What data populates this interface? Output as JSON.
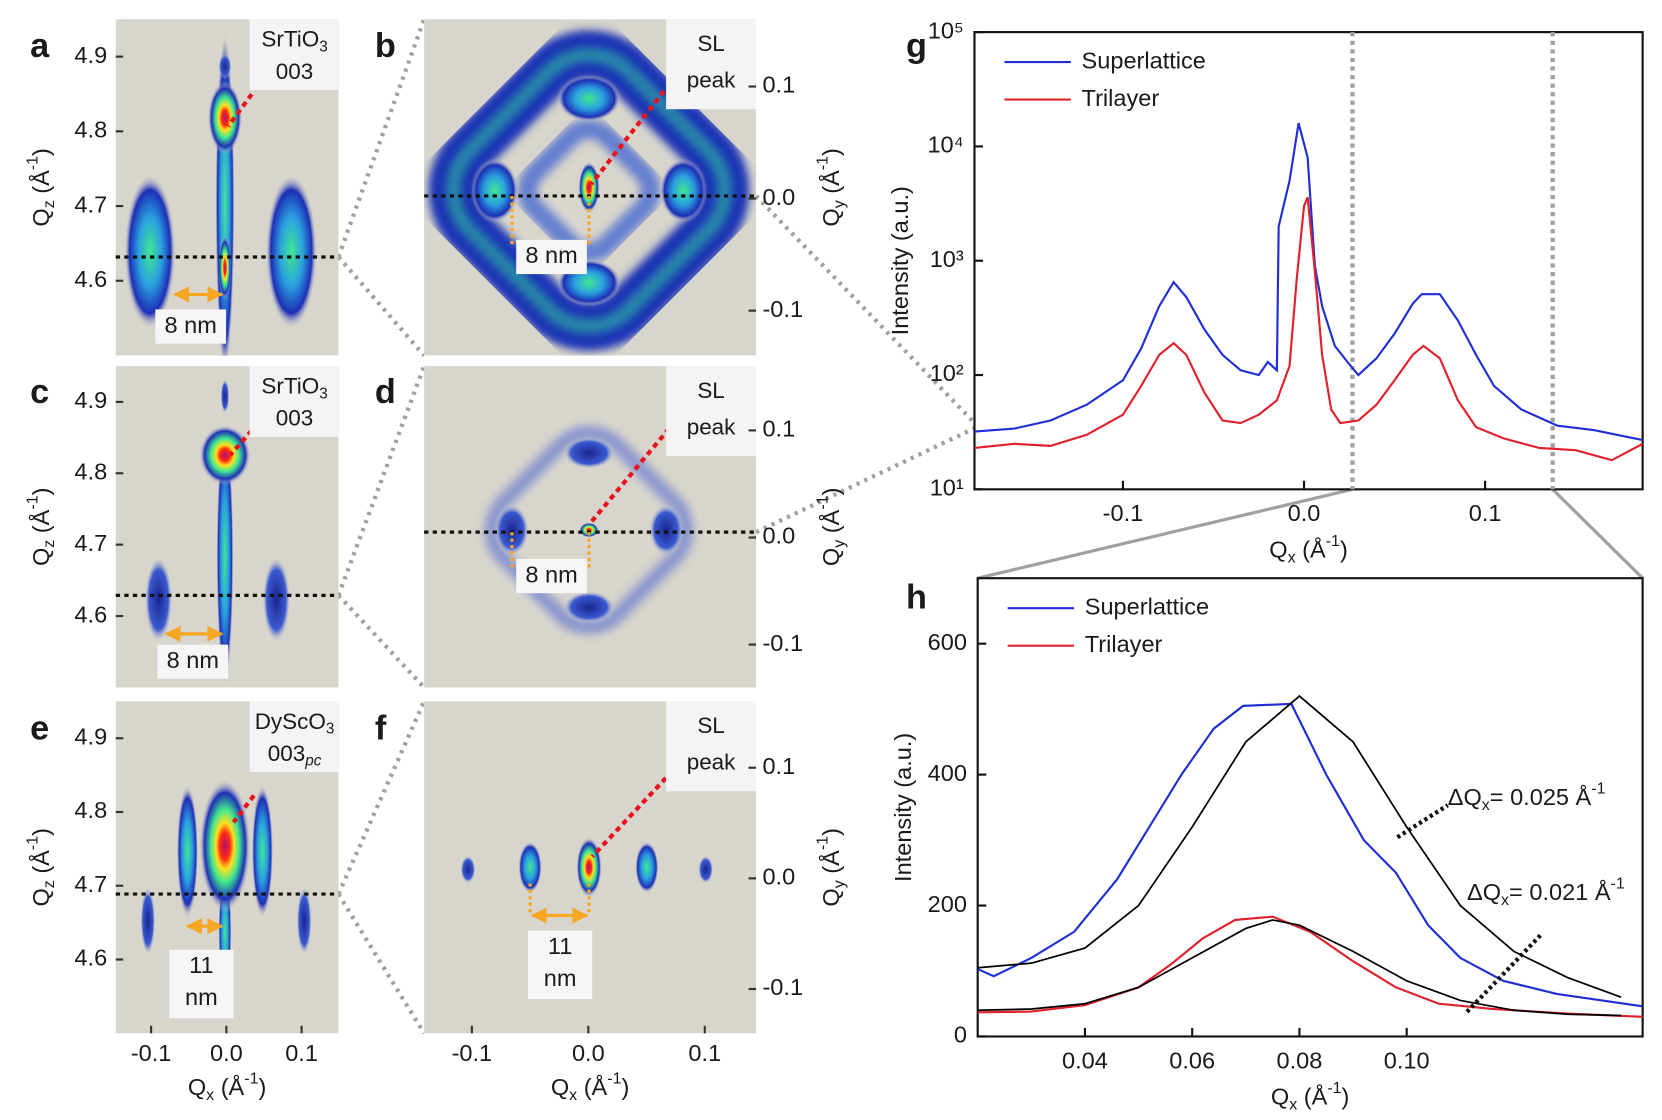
{
  "chart_data": [
    {
      "type": "map",
      "panel": "a",
      "label_box": [
        [
          "SrTiO",
          "3"
        ],
        [
          "003"
        ]
      ],
      "size_label": [
        "8 nm"
      ],
      "ylabel": [
        "Q",
        "z",
        " (Å",
        "-1",
        ")"
      ],
      "ylim": [
        4.5,
        4.95
      ],
      "yticks": [
        4.6,
        4.7,
        4.8,
        4.9
      ]
    },
    {
      "type": "map",
      "panel": "b",
      "label_box": [
        [
          "SL"
        ],
        [
          "peak"
        ]
      ],
      "size_label": [
        "8 nm"
      ],
      "ylabel": [
        "Q",
        "y",
        " (Å",
        "-1",
        ")"
      ],
      "ylim": [
        -0.14,
        0.16
      ],
      "yticks": [
        -0.1,
        {
          "value": 0,
          "label": "0.0"
        },
        0.1
      ]
    },
    {
      "type": "map",
      "panel": "c",
      "label_box": [
        [
          "SrTiO",
          "3"
        ],
        [
          "003"
        ]
      ],
      "size_label": [
        "8 nm"
      ],
      "ylabel": [
        "Q",
        "z",
        " (Å",
        "-1",
        ")"
      ],
      "ylim": [
        4.5,
        4.95
      ],
      "yticks": [
        4.6,
        4.7,
        4.8,
        4.9
      ]
    },
    {
      "type": "map",
      "panel": "d",
      "label_box": [
        [
          "SL"
        ],
        [
          "peak"
        ]
      ],
      "size_label": [
        "8 nm"
      ],
      "ylabel": [
        "Q",
        "y",
        " (Å",
        "-1",
        ")"
      ],
      "ylim": [
        -0.14,
        0.16
      ],
      "yticks": [
        -0.1,
        {
          "value": 0,
          "label": "0.0"
        },
        0.1
      ]
    },
    {
      "type": "map",
      "panel": "e",
      "label_box": [
        [
          "DyScO",
          "3"
        ],
        [
          "003",
          "pc"
        ]
      ],
      "size_label": [
        "11",
        "nm"
      ],
      "ylabel": [
        "Q",
        "z",
        " (Å",
        "-1",
        ")"
      ],
      "ylim": [
        4.5,
        4.95
      ],
      "yticks": [
        4.6,
        4.7,
        4.8,
        4.9
      ],
      "xlabel": [
        "Q",
        "x",
        " (Å",
        "-1",
        ")"
      ],
      "xlim": [
        -0.147,
        0.149
      ],
      "xticks": [
        -0.1,
        {
          "value": 0,
          "label": "0.0"
        },
        0.1
      ]
    },
    {
      "type": "map",
      "panel": "f",
      "label_box": [
        [
          "SL"
        ],
        [
          "peak"
        ]
      ],
      "size_label": [
        "11",
        "nm"
      ],
      "ylabel": [
        "Q",
        "y",
        " (Å",
        "-1",
        ")"
      ],
      "ylim": [
        -0.14,
        0.16
      ],
      "yticks": [
        -0.1,
        {
          "value": 0,
          "label": "0.0"
        },
        0.1
      ],
      "xlabel": [
        "Q",
        "x",
        " (Å",
        "-1",
        ")"
      ],
      "xlim": [
        -0.141,
        0.144
      ],
      "xticks": [
        -0.1,
        {
          "value": 0,
          "label": "0.0"
        },
        0.1
      ]
    },
    {
      "type": "line",
      "panel": "g",
      "ylabel": "Intensity (a.u.)",
      "xlabel": [
        "Q",
        "x",
        " (Å",
        "-1",
        ")"
      ],
      "log_y": true,
      "legend": "upper left",
      "xlim": [
        -0.182,
        0.187
      ],
      "xticks": [
        -0.1,
        {
          "value": 0,
          "label": "0.0"
        },
        0.1
      ],
      "ylim": [
        10,
        100000
      ],
      "yticks": [
        {
          "value": 10,
          "label": "10¹"
        },
        {
          "value": 100,
          "label": "10²"
        },
        {
          "value": 1000,
          "label": "10³"
        },
        {
          "value": 10000,
          "label": "10⁴"
        },
        {
          "value": 100000,
          "label": "10⁵"
        }
      ],
      "series": [
        {
          "name": "Superlattice",
          "color": "#1f2fd6",
          "x": [
            -0.182,
            -0.16,
            -0.14,
            -0.12,
            -0.1,
            -0.09,
            -0.08,
            -0.072,
            -0.065,
            -0.055,
            -0.045,
            -0.035,
            -0.025,
            -0.02,
            -0.015,
            -0.014,
            -0.008,
            -0.003,
            0.002,
            0.006,
            0.01,
            0.017,
            0.024,
            0.03,
            0.04,
            0.05,
            0.06,
            0.065,
            0.075,
            0.085,
            0.095,
            0.105,
            0.12,
            0.14,
            0.16,
            0.187
          ],
          "values": [
            32,
            34,
            40,
            55,
            90,
            170,
            400,
            650,
            480,
            250,
            150,
            110,
            100,
            130,
            110,
            2000,
            5000,
            16000,
            8000,
            900,
            400,
            180,
            130,
            100,
            140,
            230,
            420,
            510,
            510,
            300,
            150,
            80,
            50,
            36,
            33,
            27
          ]
        },
        {
          "name": "Trilayer",
          "color": "#e0202a",
          "x": [
            -0.182,
            -0.16,
            -0.14,
            -0.12,
            -0.1,
            -0.09,
            -0.08,
            -0.072,
            -0.065,
            -0.055,
            -0.045,
            -0.035,
            -0.025,
            -0.015,
            -0.008,
            -0.004,
            0.0,
            0.002,
            0.006,
            0.01,
            0.015,
            0.02,
            0.03,
            0.04,
            0.05,
            0.06,
            0.066,
            0.075,
            0.085,
            0.095,
            0.11,
            0.13,
            0.15,
            0.17,
            0.187
          ],
          "values": [
            23,
            25,
            24,
            30,
            45,
            80,
            150,
            190,
            150,
            70,
            40,
            38,
            45,
            60,
            120,
            700,
            3000,
            3600,
            800,
            150,
            50,
            38,
            40,
            55,
            90,
            150,
            180,
            140,
            60,
            35,
            28,
            23,
            22,
            18,
            25
          ]
        }
      ]
    },
    {
      "type": "line",
      "panel": "h",
      "ylabel": "Intensity (a.u.)",
      "xlabel": [
        "Q",
        "x",
        " (Å",
        "-1",
        ")"
      ],
      "legend": "upper left",
      "xlim": [
        0.02,
        0.144
      ],
      "xticks": [
        0.04,
        0.06,
        0.08,
        {
          "value": 0.1,
          "label": "0.10"
        }
      ],
      "ylim": [
        0,
        700
      ],
      "yticks": [
        0,
        200,
        400,
        600
      ],
      "annotations": [
        [
          "ΔQ",
          "x",
          "= 0.025 Å",
          "-1"
        ],
        [
          "ΔQ",
          "x",
          "= 0.021 Å",
          "-1"
        ]
      ],
      "series": [
        {
          "name": "Superlattice",
          "color": "#1f2fd6",
          "x": [
            0.02,
            0.023,
            0.03,
            0.038,
            0.046,
            0.052,
            0.058,
            0.064,
            0.0695,
            0.0785,
            0.085,
            0.092,
            0.098,
            0.104,
            0.11,
            0.118,
            0.128,
            0.144
          ],
          "values": [
            103,
            92,
            120,
            160,
            240,
            320,
            400,
            470,
            505,
            508,
            400,
            300,
            250,
            170,
            120,
            85,
            65,
            46
          ]
        },
        {
          "name": "Trilayer",
          "color": "#e0202a",
          "x": [
            0.02,
            0.03,
            0.04,
            0.05,
            0.056,
            0.062,
            0.068,
            0.075,
            0.082,
            0.09,
            0.098,
            0.106,
            0.116,
            0.13,
            0.144
          ],
          "values": [
            37,
            38,
            48,
            75,
            110,
            150,
            178,
            183,
            160,
            115,
            75,
            50,
            42,
            35,
            30
          ]
        },
        {
          "color": "#000000",
          "x": [
            0.02,
            0.03,
            0.04,
            0.05,
            0.06,
            0.07,
            0.08,
            0.09,
            0.1,
            0.11,
            0.12,
            0.13,
            0.14
          ],
          "values": [
            105,
            112,
            135,
            200,
            320,
            450,
            520,
            450,
            320,
            200,
            130,
            90,
            60
          ]
        },
        {
          "color": "#000000",
          "x": [
            0.02,
            0.03,
            0.04,
            0.05,
            0.06,
            0.07,
            0.075,
            0.08,
            0.09,
            0.1,
            0.11,
            0.12,
            0.13,
            0.14
          ],
          "values": [
            40,
            42,
            50,
            75,
            120,
            165,
            178,
            170,
            130,
            85,
            55,
            40,
            34,
            32
          ]
        }
      ]
    }
  ]
}
